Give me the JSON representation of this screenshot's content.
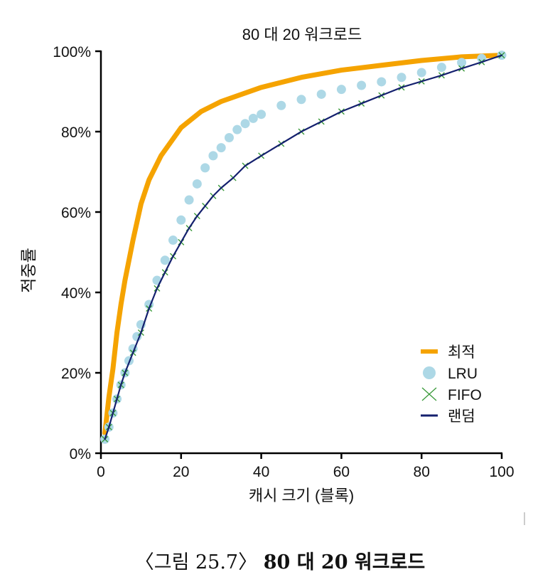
{
  "chart_data": {
    "type": "line",
    "title": "80 대 20 워크로드",
    "xlabel": "캐시 크기 (블록)",
    "ylabel": "적중률",
    "xlim": [
      0,
      100
    ],
    "ylim": [
      0,
      100
    ],
    "xticks": [
      "0",
      "20",
      "40",
      "60",
      "80",
      "100"
    ],
    "yticks": [
      "0%",
      "20%",
      "40%",
      "60%",
      "80%",
      "100%"
    ],
    "grid": false,
    "legend_position": "bottom-right",
    "series": [
      {
        "name": "최적",
        "color": "#f5a300",
        "marker": "line",
        "x": [
          1,
          2,
          3,
          4,
          5,
          6,
          8,
          10,
          12,
          15,
          20,
          25,
          30,
          40,
          50,
          60,
          70,
          80,
          90,
          100
        ],
        "y": [
          5,
          14,
          21,
          30,
          37,
          43,
          53,
          62,
          68,
          74,
          81,
          85,
          87.5,
          91,
          93.5,
          95.3,
          96.5,
          97.7,
          98.6,
          99
        ]
      },
      {
        "name": "LRU",
        "color": "#add8e6",
        "marker": "circle",
        "x": [
          1,
          2,
          3,
          4,
          5,
          6,
          7,
          8,
          9,
          10,
          12,
          14,
          16,
          18,
          20,
          22,
          24,
          26,
          28,
          30,
          32,
          34,
          36,
          38,
          40,
          45,
          50,
          55,
          60,
          65,
          70,
          75,
          80,
          85,
          90,
          95,
          100
        ],
        "y": [
          3.5,
          6.5,
          10,
          13.5,
          17,
          20,
          23,
          26,
          29,
          32,
          37,
          43,
          48,
          53,
          58,
          63,
          67,
          71,
          74,
          76,
          78.5,
          80.5,
          82,
          83.3,
          84.3,
          86.5,
          88,
          89.3,
          90.5,
          91.5,
          92.4,
          93.5,
          94.7,
          96,
          97.2,
          98.2,
          99
        ]
      },
      {
        "name": "FIFO",
        "color": "#3a9a3a",
        "marker": "x",
        "x": [
          1,
          2,
          3,
          4,
          5,
          6,
          8,
          10,
          12,
          14,
          16,
          18,
          20,
          22,
          24,
          26,
          28,
          30,
          33,
          36,
          40,
          45,
          50,
          55,
          60,
          65,
          70,
          75,
          80,
          85,
          90,
          95,
          100
        ],
        "y": [
          3.5,
          6.5,
          10,
          13.5,
          17,
          20,
          25,
          30,
          36,
          41,
          45,
          49,
          52.5,
          56,
          59,
          61.5,
          64,
          66,
          68.5,
          71.5,
          74,
          77,
          80,
          82.5,
          85,
          87,
          89,
          91,
          92.5,
          94,
          95.7,
          97.3,
          99
        ]
      },
      {
        "name": "랜덤",
        "color": "#14206e",
        "marker": "line",
        "x": [
          1,
          2,
          3,
          4,
          5,
          6,
          8,
          10,
          12,
          14,
          16,
          18,
          20,
          22,
          24,
          26,
          28,
          30,
          33,
          36,
          40,
          45,
          50,
          55,
          60,
          65,
          70,
          75,
          80,
          85,
          90,
          95,
          100
        ],
        "y": [
          3.5,
          6.5,
          10,
          13.5,
          17,
          20,
          25,
          30,
          36,
          41,
          45,
          49,
          52.5,
          56,
          59,
          61.5,
          64,
          66,
          68.5,
          71.5,
          74,
          77,
          80,
          82.5,
          85,
          87,
          89,
          91,
          92.5,
          94,
          95.7,
          97.3,
          99
        ]
      }
    ]
  },
  "caption": {
    "prefix": "〈그림 25.7〉",
    "title": "80 대 20 워크로드"
  }
}
